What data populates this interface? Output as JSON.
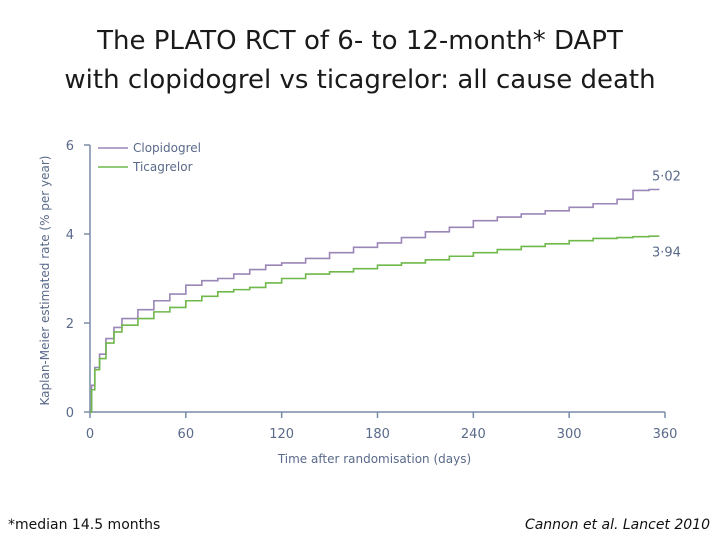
{
  "title_lines": [
    "The PLATO RCT of 6- to 12-month* DAPT",
    "with clopidogrel vs ticagrelor: all cause death"
  ],
  "footnote": "*median 14.5 months",
  "citation": "Cannon et al. Lancet 2010",
  "chart_data": {
    "type": "line",
    "xlabel": "Time after randomisation (days)",
    "ylabel": "Kaplan-Meier estimated rate (% per year)",
    "xlim": [
      0,
      360
    ],
    "ylim": [
      0,
      6
    ],
    "xticks": [
      0,
      60,
      120,
      180,
      240,
      300,
      360
    ],
    "yticks": [
      0,
      2,
      4,
      6
    ],
    "grid": false,
    "legend_position": "top-left",
    "series": [
      {
        "name": "Clopidogrel",
        "color": "#9b86b8",
        "end_label": "5·02",
        "x": [
          0,
          1,
          3,
          6,
          10,
          15,
          20,
          30,
          40,
          50,
          60,
          70,
          80,
          90,
          100,
          110,
          120,
          135,
          150,
          165,
          180,
          195,
          210,
          225,
          240,
          255,
          270,
          285,
          300,
          315,
          330,
          340,
          350,
          356
        ],
        "y": [
          0,
          0.6,
          1.0,
          1.3,
          1.65,
          1.9,
          2.1,
          2.3,
          2.5,
          2.65,
          2.85,
          2.95,
          3.0,
          3.1,
          3.2,
          3.3,
          3.35,
          3.45,
          3.58,
          3.7,
          3.8,
          3.92,
          4.05,
          4.15,
          4.3,
          4.38,
          4.45,
          4.52,
          4.6,
          4.68,
          4.78,
          4.98,
          5.0,
          5.02
        ]
      },
      {
        "name": "Ticagrelor",
        "color": "#6fb84a",
        "end_label": "3·94",
        "x": [
          0,
          1,
          3,
          6,
          10,
          15,
          20,
          30,
          40,
          50,
          60,
          70,
          80,
          90,
          100,
          110,
          120,
          135,
          150,
          165,
          180,
          195,
          210,
          225,
          240,
          255,
          270,
          285,
          300,
          315,
          330,
          340,
          350,
          356
        ],
        "y": [
          0,
          0.5,
          0.95,
          1.2,
          1.55,
          1.8,
          1.95,
          2.1,
          2.25,
          2.35,
          2.5,
          2.6,
          2.7,
          2.75,
          2.8,
          2.9,
          3.0,
          3.1,
          3.15,
          3.22,
          3.3,
          3.35,
          3.42,
          3.5,
          3.58,
          3.65,
          3.72,
          3.78,
          3.85,
          3.9,
          3.92,
          3.94,
          3.95,
          3.94
        ]
      }
    ]
  }
}
